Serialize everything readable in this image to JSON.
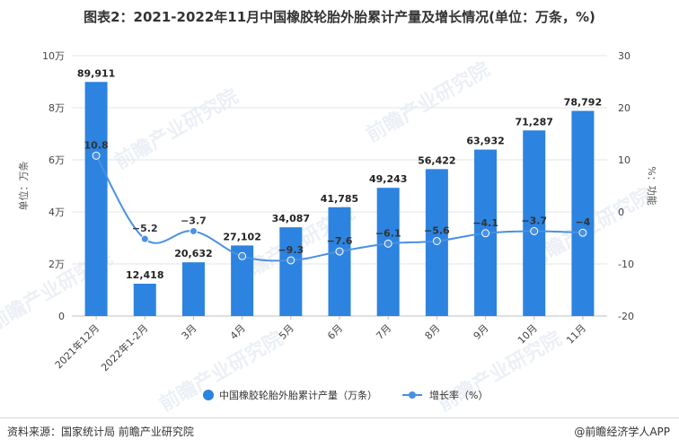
{
  "title": "图表2：2021-2022年11月中国橡胶轮胎外胎累计产量及增长情况(单位：万条，%)",
  "footer": {
    "source": "资料来源：国家统计局 前瞻产业研究院",
    "credit": "@前瞻经济学人APP"
  },
  "chart_data": {
    "type": "bar",
    "title": "图表2：2021-2022年11月中国橡胶轮胎外胎累计产量及增长情况(单位：万条，%)",
    "categories": [
      "2021年12月",
      "2022年1-2月",
      "3月",
      "4月",
      "5月",
      "6月",
      "7月",
      "8月",
      "9月",
      "10月",
      "11月"
    ],
    "series": [
      {
        "name": "中国橡胶轮胎外胎累计产量（万条）",
        "type": "bar",
        "axis": "left",
        "color": "#2c83e0",
        "values": [
          89911,
          12418,
          20632,
          27102,
          34087,
          41785,
          49243,
          56422,
          63932,
          71287,
          78792
        ],
        "labels": [
          "89,911",
          "12,418",
          "20,632",
          "27,102",
          "34,087",
          "41,785",
          "49,243",
          "56,422",
          "63,932",
          "71,287",
          "78,792"
        ]
      },
      {
        "name": "增长率（%）",
        "type": "line",
        "axis": "right",
        "color": "#4a90e2",
        "values": [
          10.8,
          -5.2,
          -3.7,
          -8.5,
          -9.3,
          -7.6,
          -6.1,
          -5.6,
          -4.1,
          -3.7,
          -4
        ],
        "labels": [
          "10.8",
          "−5.2",
          "−3.7",
          "",
          "−9.3",
          "−7.6",
          "−6.1",
          "−5.6",
          "−4.1",
          "−3.7",
          "−4"
        ]
      }
    ],
    "y_left": {
      "label": "单位：万条",
      "ylim": [
        0,
        100000
      ],
      "ticks": [
        0,
        20000,
        40000,
        60000,
        80000,
        100000
      ],
      "tick_labels": [
        "0",
        "2万",
        "4万",
        "6万",
        "8万",
        "10万"
      ]
    },
    "y_right": {
      "label": "%：功能",
      "ylim": [
        -20,
        30
      ],
      "ticks": [
        -20,
        -10,
        0,
        10,
        20,
        30
      ],
      "tick_labels": [
        "-20",
        "-10",
        "0",
        "10",
        "20",
        "30"
      ]
    },
    "legend_position": "bottom-center",
    "watermark": "前瞻产业研究院"
  }
}
